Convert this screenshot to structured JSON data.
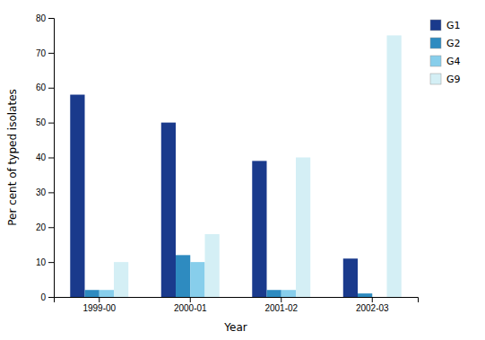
{
  "chart_data": {
    "type": "bar",
    "categories": [
      "1999-00",
      "2000-01",
      "2001-02",
      "2002-03"
    ],
    "series": [
      {
        "name": "G1",
        "color": "#1a3a8c",
        "values": [
          58,
          50,
          39,
          11
        ]
      },
      {
        "name": "G2",
        "color": "#2e8bc0",
        "values": [
          2,
          12,
          2,
          1
        ]
      },
      {
        "name": "G4",
        "color": "#87ceeb",
        "values": [
          2,
          10,
          2,
          0
        ]
      },
      {
        "name": "G9",
        "color": "#d4eff5",
        "values": [
          10,
          18,
          40,
          75
        ]
      }
    ],
    "xlabel": "Year",
    "ylabel": "Per cent of typed isolates",
    "ylim": [
      0,
      80
    ],
    "yticks": [
      0,
      10,
      20,
      30,
      40,
      50,
      60,
      70,
      80
    ],
    "legend": "upper right",
    "grid": false
  }
}
